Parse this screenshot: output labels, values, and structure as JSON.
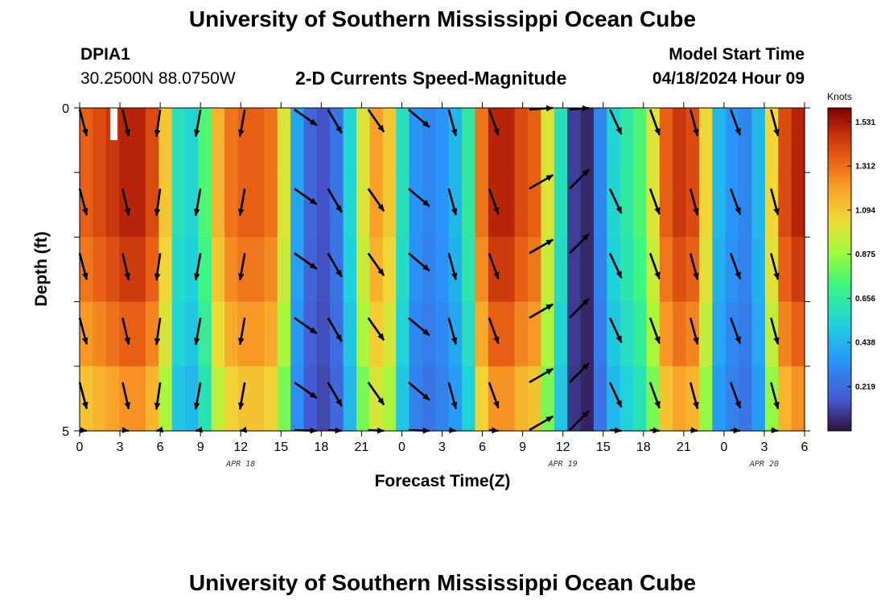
{
  "header": {
    "title": "University of Southern Mississippi Ocean Cube",
    "station": "DPIA1",
    "coords": "30.2500N  88.0750W",
    "subtitle": "2-D Currents Speed-Magnitude",
    "model_start_label": "Model Start Time",
    "model_start_value": "04/18/2024 Hour 09"
  },
  "footer": {
    "title": "University of Southern Mississippi Ocean Cube"
  },
  "chart_data": {
    "type": "heatmap",
    "title": "2-D Currents Speed-Magnitude",
    "xlabel": "Forecast Time(Z)",
    "ylabel": "Depth (ft)",
    "x_range_hours": [
      0,
      54
    ],
    "x_ticks": [
      "0",
      "3",
      "6",
      "9",
      "12",
      "15",
      "18",
      "21",
      "0",
      "3",
      "6",
      "9",
      "12",
      "15",
      "18",
      "21",
      "0",
      "3",
      "6"
    ],
    "date_labels": [
      {
        "label": "APR 18",
        "hour": 12
      },
      {
        "label": "APR 19",
        "hour": 36
      },
      {
        "label": "APR 20",
        "hour": 51
      }
    ],
    "y_range": [
      0,
      5
    ],
    "y_ticks": [
      "0",
      "5"
    ],
    "depth_levels": 5,
    "colorbar": {
      "unit": "Knots",
      "min": 0.0,
      "max": 1.6,
      "ticks": [
        "1.531",
        "1.312",
        "1.094",
        "0.875",
        "0.656",
        "0.438",
        "0.219"
      ]
    },
    "speed_by_hour_depth0": [
      1.35,
      1.4,
      1.45,
      1.5,
      1.5,
      1.4,
      1.1,
      0.6,
      0.55,
      0.75,
      1.15,
      1.3,
      1.35,
      1.35,
      1.3,
      1.0,
      0.4,
      0.2,
      0.15,
      0.25,
      0.55,
      1.0,
      1.2,
      1.1,
      0.6,
      0.35,
      0.3,
      0.35,
      0.45,
      0.65,
      1.3,
      1.5,
      1.5,
      1.4,
      1.35,
      1.0,
      0.6,
      0.1,
      0.05,
      0.3,
      0.55,
      0.65,
      0.75,
      1.0,
      1.35,
      1.45,
      1.4,
      1.05,
      0.45,
      0.35,
      0.3,
      0.45,
      1.05,
      1.4,
      1.5
    ],
    "depth_factors": [
      1.0,
      1.0,
      0.96,
      0.9,
      0.82
    ],
    "arrows": {
      "x_hours": [
        0,
        3.2,
        6,
        9,
        12.3,
        16,
        18.5,
        21.5,
        24.5,
        27.5,
        30.5,
        33.5,
        36.5,
        39.5,
        42.5,
        45.5,
        48.5,
        51.5
      ],
      "angles_deg": [
        -75,
        -77,
        -98,
        -100,
        -100,
        -35,
        -60,
        -55,
        -40,
        -75,
        -70,
        30,
        45,
        -65,
        -70,
        -75,
        -70,
        -75
      ],
      "depth_rows": [
        0.2,
        1.25,
        2.25,
        3.25,
        4.25,
        5.0
      ]
    }
  }
}
